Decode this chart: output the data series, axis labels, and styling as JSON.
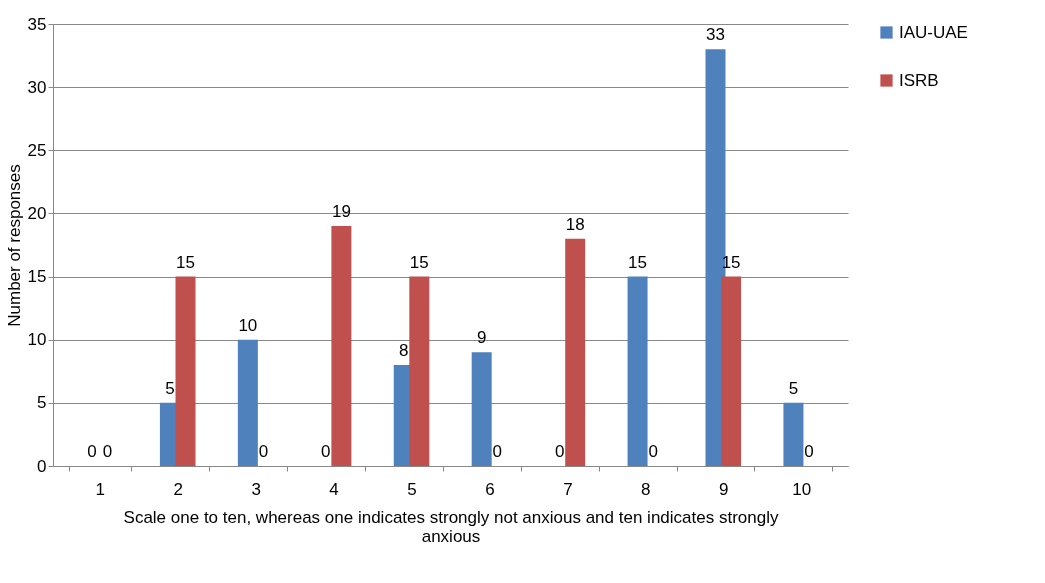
{
  "chart_data": {
    "type": "bar",
    "xlabel": "Scale one to ten, whereas one indicates strongly not anxious and ten indicates strongly anxious",
    "ylabel": "Number of responses",
    "categories": [
      "1",
      "2",
      "3",
      "4",
      "5",
      "6",
      "7",
      "8",
      "9",
      "10"
    ],
    "series": [
      {
        "name": "IAU-UAE",
        "color": "#4f81bd",
        "values": [
          0,
          5,
          10,
          0,
          8,
          9,
          0,
          15,
          33,
          5
        ]
      },
      {
        "name": "ISRB",
        "color": "#c0504d",
        "values": [
          0,
          15,
          0,
          19,
          15,
          0,
          18,
          0,
          15,
          0
        ]
      }
    ],
    "ylim": [
      0,
      35
    ],
    "yticks": [
      0,
      5,
      10,
      15,
      20,
      25,
      30,
      35
    ],
    "grid": "y",
    "legend": "right",
    "data_labels": true
  }
}
